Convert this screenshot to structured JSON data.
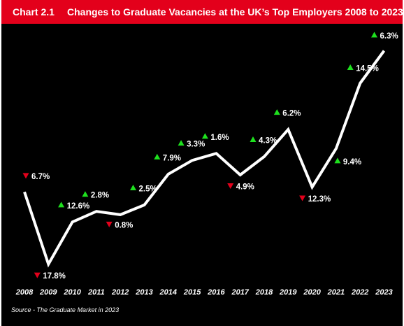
{
  "header": {
    "chart_label": "Chart 2.1",
    "title": "Changes to Graduate Vacancies at the UK’s Top Employers 2008 to 2023"
  },
  "footer": {
    "source_prefix": "Source",
    "source_text": " - The Graduate Market in 2023"
  },
  "colors": {
    "header_bg": "#e3001b",
    "background": "#000000",
    "line": "#ffffff",
    "increase": "#1ee01e",
    "decrease": "#e3001b"
  },
  "chart_data": {
    "type": "line",
    "title": "Changes to Graduate Vacancies at the UK’s Top Employers 2008 to 2023",
    "xlabel": "",
    "ylabel": "",
    "grid": false,
    "legend": "none",
    "x": [
      "2008",
      "2009",
      "2010",
      "2011",
      "2012",
      "2013",
      "2014",
      "2015",
      "2016",
      "2017",
      "2018",
      "2019",
      "2020",
      "2021",
      "2022",
      "2023"
    ],
    "series": [
      {
        "values": [
          100,
          82.2,
          92.6,
          95.2,
          94.4,
          96.8,
          104.4,
          107.8,
          109.5,
          104.2,
          108.7,
          115.4,
          101.2,
          110.7,
          126.8,
          134.8
        ]
      }
    ],
    "ylim": [
      78,
      138
    ],
    "labels": [
      null,
      {
        "text": "17.8%",
        "direction": "down"
      },
      {
        "text": "12.6%",
        "direction": "up"
      },
      {
        "text": "2.8%",
        "direction": "up"
      },
      {
        "text": "0.8%",
        "direction": "down"
      },
      {
        "text": "2.5%",
        "direction": "up"
      },
      {
        "text": "7.9%",
        "direction": "up"
      },
      {
        "text": "3.3%",
        "direction": "up"
      },
      {
        "text": "1.6%",
        "direction": "up"
      },
      {
        "text": "4.9%",
        "direction": "down"
      },
      {
        "text": "4.3%",
        "direction": "up"
      },
      {
        "text": "6.2%",
        "direction": "up"
      },
      {
        "text": "12.3%",
        "direction": "down"
      },
      {
        "text": "9.4%",
        "direction": "up"
      },
      {
        "text": "14.5%",
        "direction": "up"
      },
      {
        "text": "6.3%",
        "direction": "up"
      }
    ],
    "start_label": {
      "text": "6.7%",
      "direction": "down"
    }
  }
}
